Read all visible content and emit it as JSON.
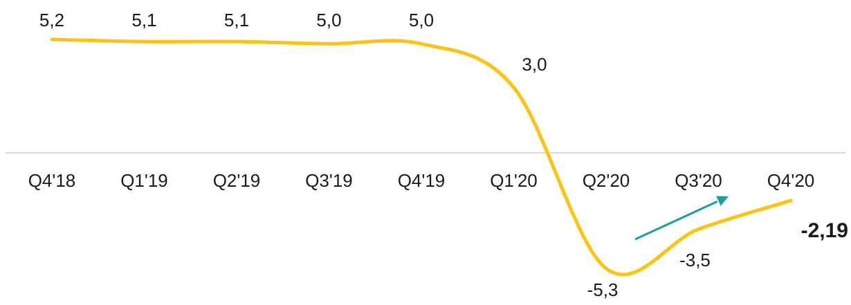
{
  "chart_data": {
    "type": "line",
    "categories": [
      "Q4'18",
      "Q1'19",
      "Q2'19",
      "Q3'19",
      "Q4'19",
      "Q1'20",
      "Q2'20",
      "Q3'20",
      "Q4'20"
    ],
    "series": [
      {
        "values": [
          5.2,
          5.1,
          5.1,
          5.0,
          5.0,
          3.0,
          -5.3,
          -3.5,
          -2.19
        ],
        "labels": [
          "5,2",
          "5,1",
          "5,1",
          "5,0",
          "5,0",
          "3,0",
          "-5,3",
          "-3,5",
          "-2,19"
        ],
        "color": "#FFC20E"
      }
    ],
    "highlight_label_index": 8,
    "trend_arrow": {
      "from_index": 7,
      "to_index": 8,
      "color": "#1AA19A",
      "icon": "arrow-up-right-icon"
    },
    "zero_line": true,
    "grid": false,
    "legend": "none",
    "ylim": [
      -6,
      6
    ]
  }
}
